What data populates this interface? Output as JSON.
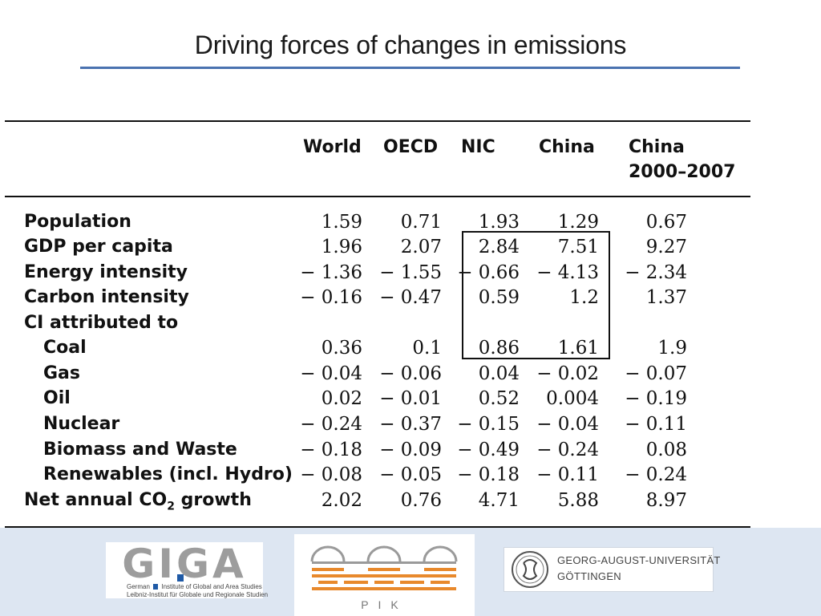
{
  "slide": {
    "title": "Driving forces of changes in emissions"
  },
  "table": {
    "columns": [
      "World",
      "OECD",
      "NIC",
      "China",
      "China",
      "2000–2007"
    ],
    "rows": [
      {
        "label": "Population",
        "values": [
          "1.59",
          "0.71",
          "1.93",
          "1.29",
          "0.67"
        ]
      },
      {
        "label": "GDP per capita",
        "values": [
          "1.96",
          "2.07",
          "2.84",
          "7.51",
          "9.27"
        ]
      },
      {
        "label": "Energy intensity",
        "values": [
          "− 1.36",
          "− 1.55",
          "− 0.66",
          "− 4.13",
          "− 2.34"
        ]
      },
      {
        "label": "Carbon intensity",
        "values": [
          "− 0.16",
          "− 0.47",
          "0.59",
          "1.2",
          "1.37"
        ]
      },
      {
        "label": "CI attributed to",
        "values": [
          "",
          "",
          "",
          "",
          ""
        ]
      },
      {
        "label": "Coal",
        "values": [
          "0.36",
          "0.1",
          "0.86",
          "1.61",
          "1.9"
        ]
      },
      {
        "label": "Gas",
        "values": [
          "− 0.04",
          "− 0.06",
          "0.04",
          "− 0.02",
          "− 0.07"
        ]
      },
      {
        "label": "Oil",
        "values": [
          "0.02",
          "− 0.01",
          "0.52",
          "0.004",
          "− 0.19"
        ]
      },
      {
        "label": "Nuclear",
        "values": [
          "− 0.24",
          "− 0.37",
          "− 0.15",
          "− 0.04",
          "− 0.11"
        ]
      },
      {
        "label": "Biomass and Waste",
        "values": [
          "− 0.18",
          "− 0.09",
          "− 0.49",
          "− 0.24",
          "0.08"
        ]
      },
      {
        "label": "Renewables (incl. Hydro)",
        "values": [
          "− 0.08",
          "− 0.05",
          "− 0.18",
          "− 0.11",
          "− 0.24"
        ]
      },
      {
        "label": "Net annual CO",
        "values": [
          "2.02",
          "0.76",
          "4.71",
          "5.88",
          "8.97"
        ]
      }
    ],
    "co2_subscript": "2",
    "co2_suffix": " growth"
  },
  "footer": {
    "giga_mark": "GIGA",
    "giga_line1": "German",
    "giga_line1b": "Institute of Global and Area Studies",
    "giga_line2": "Leibniz-Institut für Globale und Regionale Studien",
    "pik_label": "PIK",
    "goe_line1": "GEORG-AUGUST-UNIVERSITÄT",
    "goe_line2": "GÖTTINGEN"
  },
  "colors": {
    "title_rule": "#4a72b0",
    "footer_band": "#dde6f2",
    "pik_orange": "#e8892c",
    "giga_blue": "#1f5aa6"
  }
}
